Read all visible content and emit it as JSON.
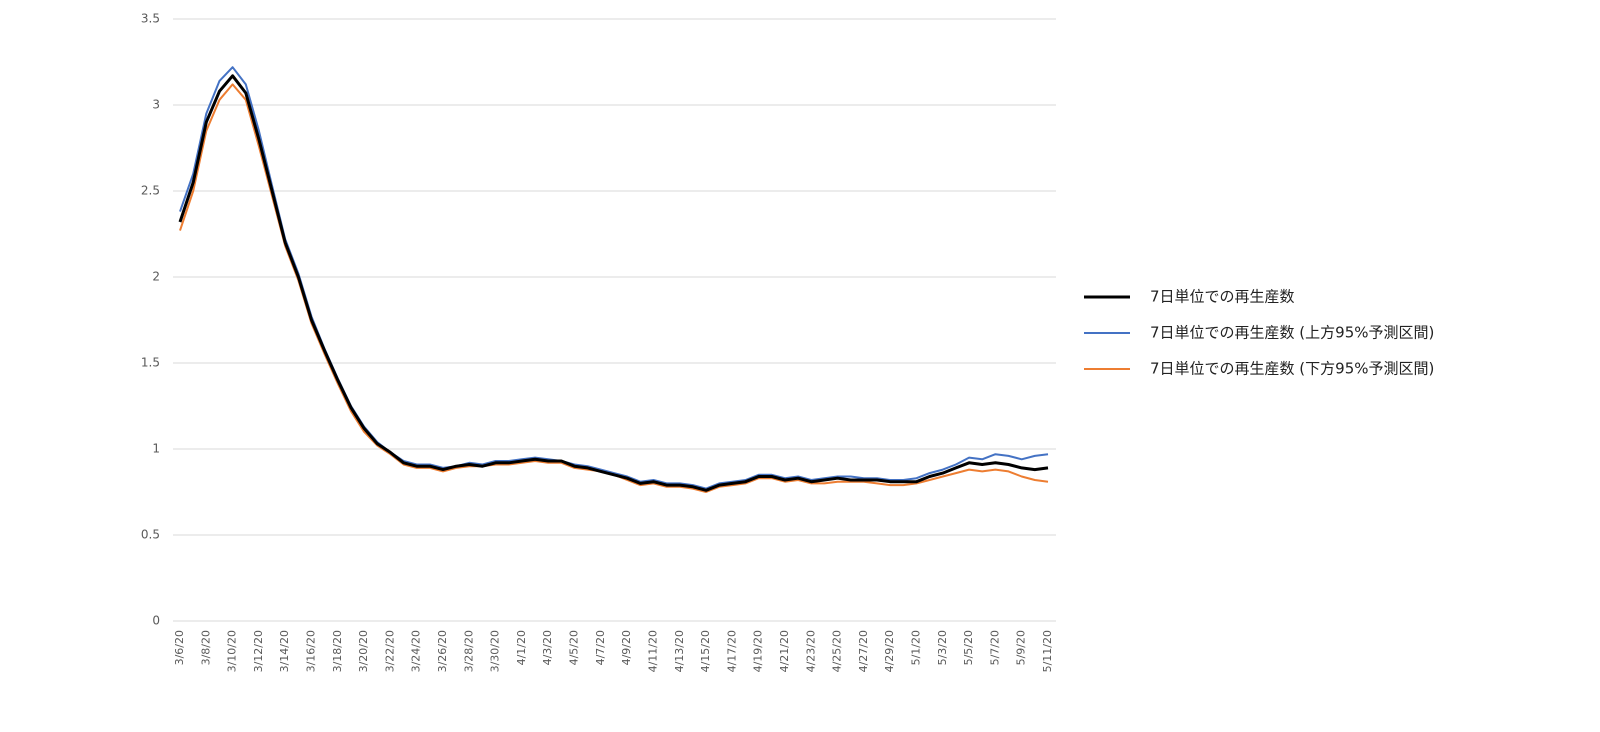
{
  "chart_data": {
    "type": "line",
    "categories": [
      "3/6/20",
      null,
      "3/8/20",
      null,
      "3/10/20",
      null,
      "3/12/20",
      null,
      "3/14/20",
      null,
      "3/16/20",
      null,
      "3/18/20",
      null,
      "3/20/20",
      null,
      "3/22/20",
      null,
      "3/24/20",
      null,
      "3/26/20",
      null,
      "3/28/20",
      null,
      "3/30/20",
      null,
      "4/1/20",
      null,
      "4/3/20",
      null,
      "4/5/20",
      null,
      "4/7/20",
      null,
      "4/9/20",
      null,
      "4/11/20",
      null,
      "4/13/20",
      null,
      "4/15/20",
      null,
      "4/17/20",
      null,
      "4/19/20",
      null,
      "4/21/20",
      null,
      "4/23/20",
      null,
      "4/25/20",
      null,
      "4/27/20",
      null,
      "4/29/20",
      null,
      "5/1/20",
      null,
      "5/3/20",
      null,
      "5/5/20",
      null,
      "5/7/20",
      null,
      "5/9/20",
      null,
      "5/11/20"
    ],
    "series": [
      {
        "name": "7日単位での再生産数",
        "color": "#000000",
        "values": [
          2.32,
          2.55,
          2.9,
          3.08,
          3.17,
          3.07,
          2.8,
          2.5,
          2.2,
          2.0,
          1.75,
          1.57,
          1.4,
          1.24,
          1.12,
          1.03,
          0.98,
          0.92,
          0.9,
          0.9,
          0.88,
          0.9,
          0.91,
          0.9,
          0.92,
          0.92,
          0.93,
          0.94,
          0.93,
          0.93,
          0.9,
          0.89,
          0.87,
          0.85,
          0.83,
          0.8,
          0.81,
          0.79,
          0.79,
          0.78,
          0.76,
          0.79,
          0.8,
          0.81,
          0.84,
          0.84,
          0.82,
          0.83,
          0.81,
          0.82,
          0.83,
          0.82,
          0.82,
          0.82,
          0.81,
          0.81,
          0.81,
          0.84,
          0.86,
          0.89,
          0.92,
          0.91,
          0.92,
          0.91,
          0.89,
          0.88,
          0.89
        ]
      },
      {
        "name": "7日単位での再生産数 (上方95%予測区間)",
        "color": "#4472c4",
        "values": [
          2.38,
          2.6,
          2.95,
          3.14,
          3.22,
          3.12,
          2.85,
          2.53,
          2.22,
          2.02,
          1.77,
          1.58,
          1.41,
          1.25,
          1.13,
          1.04,
          0.98,
          0.93,
          0.91,
          0.91,
          0.89,
          0.9,
          0.92,
          0.91,
          0.93,
          0.93,
          0.94,
          0.95,
          0.94,
          0.93,
          0.91,
          0.9,
          0.88,
          0.86,
          0.84,
          0.81,
          0.82,
          0.8,
          0.8,
          0.79,
          0.77,
          0.8,
          0.81,
          0.82,
          0.85,
          0.85,
          0.83,
          0.84,
          0.82,
          0.83,
          0.84,
          0.84,
          0.83,
          0.83,
          0.82,
          0.82,
          0.83,
          0.86,
          0.88,
          0.91,
          0.95,
          0.94,
          0.97,
          0.96,
          0.94,
          0.96,
          0.97
        ]
      },
      {
        "name": "7日単位での再生産数 (下方95%予測区間)",
        "color": "#ed7d31",
        "values": [
          2.27,
          2.5,
          2.85,
          3.03,
          3.12,
          3.03,
          2.76,
          2.47,
          2.18,
          1.98,
          1.73,
          1.55,
          1.38,
          1.22,
          1.1,
          1.02,
          0.97,
          0.91,
          0.89,
          0.89,
          0.87,
          0.89,
          0.9,
          0.9,
          0.91,
          0.91,
          0.92,
          0.93,
          0.92,
          0.92,
          0.89,
          0.88,
          0.87,
          0.85,
          0.82,
          0.79,
          0.8,
          0.78,
          0.78,
          0.77,
          0.75,
          0.78,
          0.79,
          0.8,
          0.83,
          0.83,
          0.81,
          0.82,
          0.8,
          0.8,
          0.81,
          0.81,
          0.81,
          0.8,
          0.79,
          0.79,
          0.8,
          0.82,
          0.84,
          0.86,
          0.88,
          0.87,
          0.88,
          0.87,
          0.84,
          0.82,
          0.81
        ]
      }
    ],
    "ylim": [
      0,
      3.5
    ],
    "yticks": [
      0,
      0.5,
      1,
      1.5,
      2,
      2.5,
      3,
      3.5
    ],
    "grid": true,
    "legend": "right"
  }
}
